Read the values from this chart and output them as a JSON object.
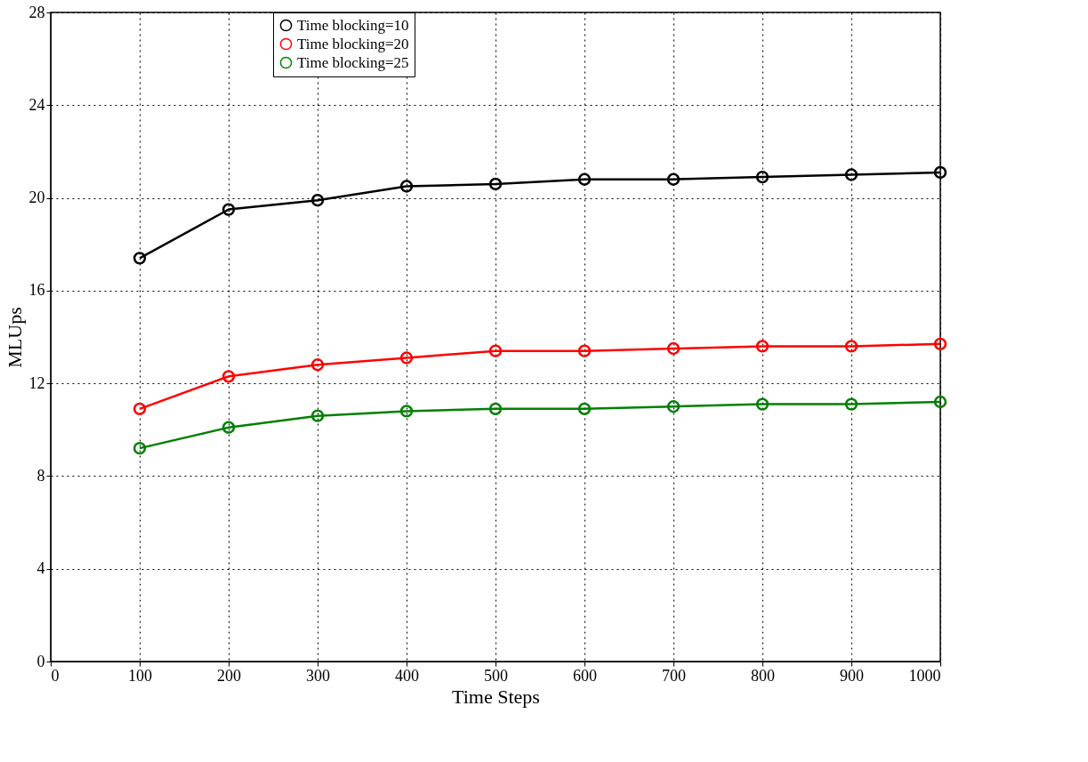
{
  "chart_data": {
    "type": "line",
    "xlabel": "Time Steps",
    "ylabel": "MLUps",
    "x": [
      100,
      200,
      300,
      400,
      500,
      600,
      700,
      800,
      900,
      1000
    ],
    "series": [
      {
        "name": "Time blocking=10",
        "color": "#000000",
        "values": [
          17.4,
          19.5,
          19.9,
          20.5,
          20.6,
          20.8,
          20.8,
          20.9,
          21.0,
          21.1
        ]
      },
      {
        "name": "Time blocking=20",
        "color": "#ff0000",
        "values": [
          10.9,
          12.3,
          12.8,
          13.1,
          13.4,
          13.4,
          13.5,
          13.6,
          13.6,
          13.7
        ]
      },
      {
        "name": "Time blocking=25",
        "color": "#008000",
        "values": [
          9.2,
          10.1,
          10.6,
          10.8,
          10.9,
          10.9,
          11.0,
          11.1,
          11.1,
          11.2
        ]
      }
    ],
    "xlim": [
      0,
      1000
    ],
    "xticks": [
      0,
      100,
      200,
      300,
      400,
      500,
      600,
      700,
      800,
      900,
      1000
    ],
    "ylim": [
      0,
      28
    ],
    "yticks": [
      0,
      4,
      8,
      12,
      16,
      20,
      24,
      28
    ],
    "grid": true,
    "legend": "top",
    "marker": "circle",
    "line_style": "solid"
  }
}
